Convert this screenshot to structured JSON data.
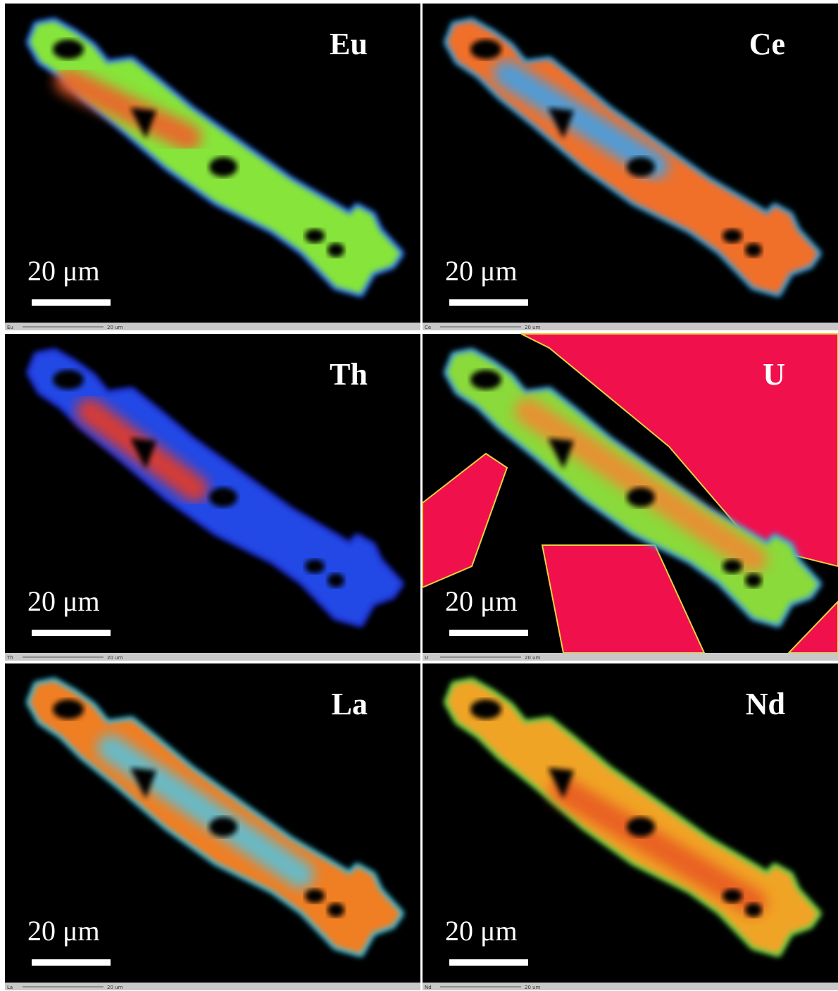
{
  "panels": [
    {
      "element": "Eu",
      "scale_label": "20 μm",
      "strip": {
        "element": "Eu",
        "scale": "20 um"
      }
    },
    {
      "element": "Ce",
      "scale_label": "20 μm",
      "strip": {
        "element": "Ce",
        "scale": "20 um"
      }
    },
    {
      "element": "Th",
      "scale_label": "20 μm",
      "strip": {
        "element": "Th",
        "scale": "20 um"
      }
    },
    {
      "element": "U",
      "scale_label": "20 μm",
      "strip": {
        "element": "U",
        "scale": "20 um"
      }
    },
    {
      "element": "La",
      "scale_label": "20 μm",
      "strip": {
        "element": "La",
        "scale": "20 um"
      }
    },
    {
      "element": "Nd",
      "scale_label": "20 μm",
      "strip": {
        "element": "Nd",
        "scale": "20 um"
      }
    }
  ]
}
